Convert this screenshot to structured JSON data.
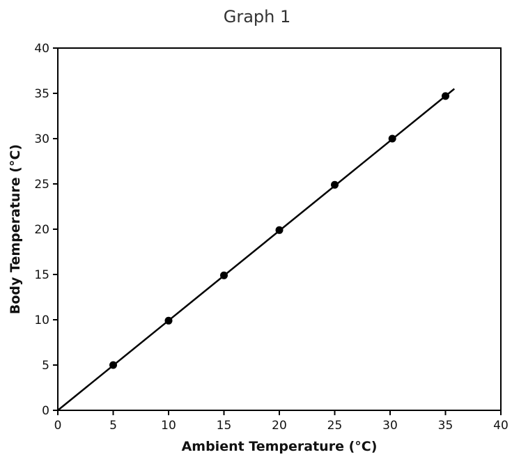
{
  "chart_data": {
    "type": "scatter",
    "title": "Graph 1",
    "xlabel": "Ambient Temperature (°C)",
    "ylabel": "Body Temperature (°C)",
    "xlim": [
      0,
      40
    ],
    "ylim": [
      0,
      40
    ],
    "xticks": [
      "0",
      "5",
      "10",
      "15",
      "20",
      "25",
      "30",
      "35",
      "40"
    ],
    "yticks": [
      "0",
      "5",
      "10",
      "15",
      "20",
      "25",
      "30",
      "35",
      "40"
    ],
    "grid": false,
    "legend": "none",
    "series": [
      {
        "points": [
          {
            "x": 5,
            "y": 5
          },
          {
            "x": 10,
            "y": 9.9
          },
          {
            "x": 15,
            "y": 14.9
          },
          {
            "x": 20,
            "y": 19.9
          },
          {
            "x": 25,
            "y": 24.9
          },
          {
            "x": 30.2,
            "y": 30
          },
          {
            "x": 35,
            "y": 34.7
          }
        ],
        "color": "#000000"
      }
    ],
    "trend_line": {
      "from": [
        0,
        0
      ],
      "to": [
        35.8,
        35.5
      ],
      "color": "#000000"
    }
  }
}
